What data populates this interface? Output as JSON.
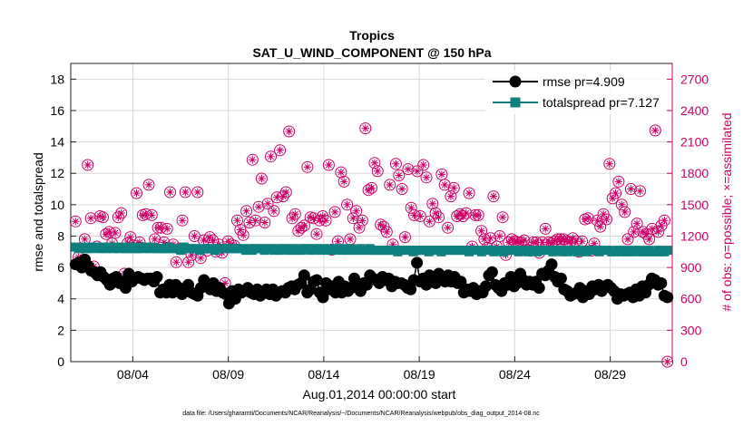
{
  "chart_data": {
    "type": "line",
    "title": "Tropics",
    "subtitle": "SAT_U_WIND_COMPONENT @ 150 hPa",
    "xlabel": "Aug.01,2014 00:00:00 start",
    "ylabel": "rmse and totalspread",
    "ylabel_right": "# of obs: o=possible; ×=assimilated",
    "footnote": "data file: /Users/gharamti/Documents/NCAR/Reanalysis/~/Documents/NCAR/Reanalysis/webpub/obs_diag_output_2014-08.nc",
    "x_ticks": [
      "08/04",
      "08/09",
      "08/14",
      "08/19",
      "08/24",
      "08/29"
    ],
    "x_tick_days": [
      4,
      9,
      14,
      19,
      24,
      29
    ],
    "xlim": [
      0.75,
      32.25
    ],
    "ylim": [
      0,
      19
    ],
    "y_ticks": [
      "0",
      "2",
      "4",
      "6",
      "8",
      "10",
      "12",
      "14",
      "16",
      "18"
    ],
    "y_tick_values": [
      0,
      2,
      4,
      6,
      8,
      10,
      12,
      14,
      16,
      18
    ],
    "ylim_right": [
      0,
      2850
    ],
    "y_ticks_right": [
      "0",
      "300",
      "600",
      "900",
      "1200",
      "1500",
      "1800",
      "2100",
      "2400",
      "2700"
    ],
    "y_tick_values_right": [
      0,
      300,
      600,
      900,
      1200,
      1500,
      1800,
      2100,
      2400,
      2700
    ],
    "grid": true,
    "legend_position": "top-right",
    "colors": {
      "rmse": "#000000",
      "totalspread": "#0e8080",
      "obs": "#cc0066",
      "grid": "#d9d9d9"
    },
    "series": [
      {
        "name": "rmse",
        "label": "rmse pr=4.909",
        "values": [
          6.2,
          6.3,
          6.0,
          6.5,
          6.1,
          5.8,
          5.7,
          5.5,
          5.7,
          5.4,
          5.2,
          4.9,
          5.3,
          5.4,
          5.0,
          5.1,
          4.7,
          5.6,
          5.1,
          5.3,
          5.4,
          5.3,
          5.2,
          5.3,
          5.3,
          5.1,
          5.4,
          4.4,
          4.6,
          4.4,
          4.9,
          4.4,
          4.9,
          4.7,
          4.3,
          4.5,
          4.9,
          4.4,
          4.3,
          4.2,
          4.7,
          5.2,
          4.8,
          4.6,
          5.0,
          4.5,
          4.7,
          4.4,
          4.3,
          3.7,
          4.5,
          4.0,
          4.6,
          4.4,
          4.5,
          4.7,
          4.4,
          4.3,
          4.6,
          4.2,
          4.4,
          4.6,
          4.3,
          4.6,
          4.2,
          4.4,
          4.5,
          4.4,
          4.7,
          4.8,
          4.6,
          4.9,
          5.0,
          5.5,
          4.4,
          4.6,
          5.1,
          5.2,
          4.4,
          4.1,
          5.0,
          4.6,
          4.8,
          4.4,
          5.1,
          4.4,
          4.8,
          4.5,
          4.7,
          5.3,
          4.9,
          4.5,
          5.0,
          4.9,
          5.5,
          5.3,
          5.2,
          5.0,
          5.4,
          5.2,
          5.3,
          4.8,
          5.1,
          5.0,
          5.0,
          4.9,
          4.7,
          4.6,
          5.2,
          6.3,
          5.1,
          5.3,
          4.9,
          5.5,
          5.3,
          5.0,
          5.6,
          5.2,
          5.1,
          5.5,
          5.1,
          5.4,
          5.0,
          5.1,
          4.4,
          4.6,
          4.5,
          4.7,
          4.3,
          4.5,
          4.4,
          4.8,
          5.5,
          5.7,
          4.9,
          4.7,
          4.5,
          5.0,
          4.9,
          5.4,
          4.8,
          5.0,
          5.6,
          5.2,
          4.9,
          5.1,
          4.9,
          5.1,
          4.7,
          5.6,
          5.5,
          5.8,
          6.2,
          5.4,
          5.1,
          5.3,
          4.6,
          4.5,
          4.2,
          4.3,
          4.4,
          4.7,
          4.1,
          4.5,
          4.3,
          4.8,
          4.6,
          4.9,
          4.5,
          4.8,
          4.9,
          4.7,
          4.5,
          4.0,
          4.3,
          4.2,
          4.3,
          4.4,
          4.1,
          4.6,
          4.2,
          4.8,
          4.4,
          4.9,
          5.3,
          5.2,
          4.9,
          5.0,
          4.2,
          4.1
        ]
      },
      {
        "name": "totalspread",
        "label": "totalspread pr=7.127",
        "values": [
          7.3,
          7.2,
          7.3,
          7.2,
          7.3,
          7.2,
          7.3,
          7.3,
          7.2,
          7.3,
          7.2,
          7.3,
          7.2,
          7.3,
          7.2,
          7.3,
          7.2,
          7.2,
          7.3,
          7.2,
          7.2,
          7.3,
          7.2,
          7.3,
          7.2,
          7.3,
          7.2,
          7.2,
          7.2,
          7.2,
          7.3,
          7.2,
          7.2,
          7.2,
          7.1,
          7.3,
          7.2,
          7.2,
          7.2,
          7.2,
          7.1,
          7.2,
          7.2,
          7.2,
          7.2,
          7.1,
          7.2,
          7.2,
          7.2,
          7.2,
          7.2,
          7.2,
          7.2,
          7.2,
          7.2,
          7.1,
          7.2,
          7.1,
          7.2,
          7.2,
          7.2,
          7.1,
          7.2,
          7.2,
          7.1,
          7.2,
          7.1,
          7.2,
          7.2,
          7.1,
          7.2,
          7.1,
          7.2,
          7.1,
          7.2,
          7.2,
          7.1,
          7.2,
          7.2,
          7.1,
          7.2,
          7.1,
          7.2,
          7.1,
          7.2,
          7.2,
          7.1,
          7.2,
          7.1,
          7.2,
          7.1,
          7.1,
          7.2,
          7.1,
          7.1,
          7.2,
          7.1,
          7.1,
          7.1,
          7.1,
          7.1,
          7.1,
          7.1,
          7.1,
          7.0,
          7.1,
          7.1,
          7.1,
          7.1,
          7.0,
          7.1,
          7.1,
          7.1,
          7.1,
          7.0,
          7.1,
          7.1,
          7.1,
          7.0,
          7.1,
          7.1,
          7.1,
          7.1,
          7.1,
          7.1,
          7.1,
          7.1,
          7.0,
          7.1,
          7.1,
          7.1,
          7.0,
          7.1,
          7.1,
          7.1,
          7.0,
          7.1,
          7.1,
          7.0,
          7.1,
          7.1,
          7.1,
          7.1,
          7.0,
          7.1,
          7.1,
          7.0,
          7.1,
          7.1,
          7.0,
          7.1,
          7.1,
          7.1,
          7.1,
          7.0,
          7.1,
          7.1,
          7.0,
          7.1,
          7.0,
          7.1,
          7.1,
          7.0,
          7.1,
          7.1,
          7.0,
          7.1,
          7.1,
          7.1,
          7.0,
          7.1,
          7.1,
          7.1,
          7.0,
          7.0,
          7.1,
          7.0,
          7.1,
          7.0,
          7.0,
          7.1,
          7.0,
          7.1,
          7.0,
          7.0,
          7.1,
          7.0,
          7.0,
          7.1,
          7.0,
          7.0,
          7.1
        ]
      }
    ],
    "obs_counts": {
      "name": "# of obs",
      "values": [
        1340,
        1000,
        960,
        1170,
        1880,
        1370,
        910,
        1100,
        1390,
        1380,
        1220,
        1240,
        1130,
        1230,
        1380,
        1420,
        840,
        1130,
        1190,
        1110,
        1610,
        1140,
        1400,
        1410,
        1690,
        1400,
        1170,
        1280,
        1280,
        1140,
        1270,
        1620,
        1120,
        950,
        1080,
        1350,
        1620,
        950,
        1020,
        1200,
        1620,
        990,
        1160,
        1060,
        1190,
        1160,
        1050,
        1120,
        1040,
        750,
        1150,
        1120,
        1110,
        1350,
        1260,
        1210,
        1440,
        1330,
        1930,
        1350,
        1480,
        1750,
        1330,
        1510,
        1960,
        1440,
        1570,
        2020,
        1580,
        1620,
        2200,
        1370,
        1410,
        1250,
        1280,
        1300,
        1860,
        1380,
        1370,
        1220,
        1350,
        1390,
        1350,
        1880,
        1070,
        1430,
        1150,
        1810,
        1720,
        1500,
        1170,
        1370,
        1440,
        1280,
        1350,
        2230,
        1640,
        1660,
        1900,
        1820,
        1310,
        1290,
        1240,
        1690,
        1120,
        1890,
        1780,
        1650,
        1190,
        1840,
        1470,
        1400,
        1820,
        1390,
        1880,
        1760,
        1340,
        1510,
        1420,
        1380,
        1790,
        1690,
        1280,
        1580,
        1660,
        1390,
        1410,
        1390,
        1420,
        1610,
        1100,
        1400,
        1400,
        1250,
        1170,
        1090,
        1180,
        1580,
        1100,
        1200,
        1380,
        1020,
        1140,
        1170,
        1150,
        1140,
        1140,
        1160,
        1070,
        1060,
        1140,
        1140,
        1040,
        1140,
        1270,
        1140,
        1130,
        1150,
        1170,
        1170,
        1170,
        1150,
        1140,
        1180,
        1150,
        1050,
        1150,
        1360,
        1370,
        1060,
        1130,
        1350,
        1290,
        1410,
        1360,
        1890,
        1560,
        1610,
        1720,
        1500,
        1430,
        1170,
        1650,
        1240,
        1320,
        1630,
        1240,
        1220,
        1170,
        1270,
        2210,
        1240,
        1300,
        1350,
        0
      ]
    }
  }
}
